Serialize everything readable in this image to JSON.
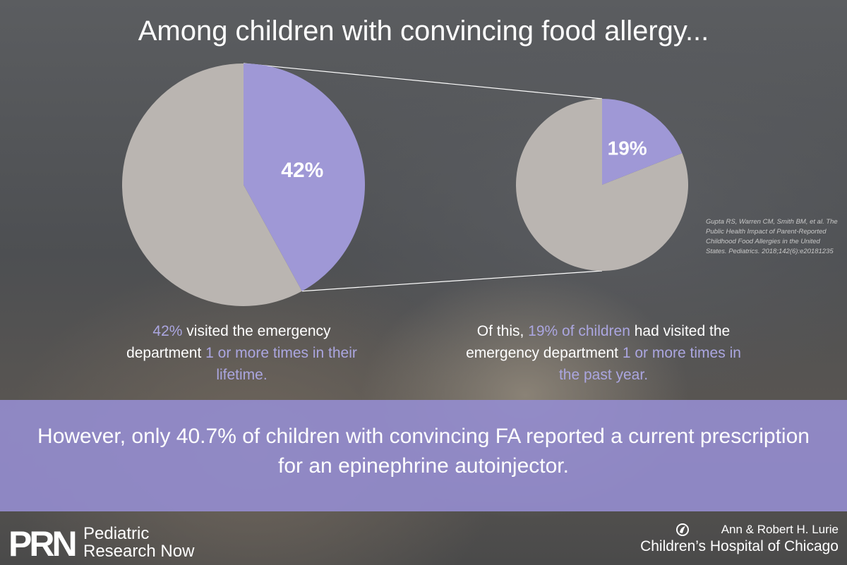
{
  "title": "Among children with convincing food allergy...",
  "chart_data": [
    {
      "type": "pie",
      "slices": [
        {
          "label": "42%",
          "value": 42
        },
        {
          "label": "",
          "value": 58
        }
      ],
      "caption": {
        "hl1": "42%",
        "t1": " visited the emergency department ",
        "hl2": "1 or more times in their lifetime."
      }
    },
    {
      "type": "pie",
      "slices": [
        {
          "label": "19%",
          "value": 19
        },
        {
          "label": "",
          "value": 81
        }
      ],
      "caption": {
        "t1": "Of this, ",
        "hl1": "19% of children",
        "t2": " had visited the emergency department ",
        "hl2": "1 or more times in the past year."
      }
    }
  ],
  "colors": {
    "highlight": "#9f98d6",
    "rest": "#bab5b1",
    "band": "#9a93cf"
  },
  "citation": "Gupta RS, Warren CM, Smith BM, et al. The Public Health Impact of Parent-Reported Childhood Food Allergies in the United States. Pediatrics. 2018;142(6):e20181235",
  "banner": "However, only 40.7% of children with convincing FA reported a current prescription for an epinephrine autoinjector.",
  "footer": {
    "prn_logo": "PRN",
    "prn_line1": "Pediatric",
    "prn_line2": "Research Now",
    "hospital_line1": "Ann & Robert H. Lurie",
    "hospital_line2": "Children’s Hospital of Chicago",
    "hospital_icon": "lurie-logo-icon"
  }
}
